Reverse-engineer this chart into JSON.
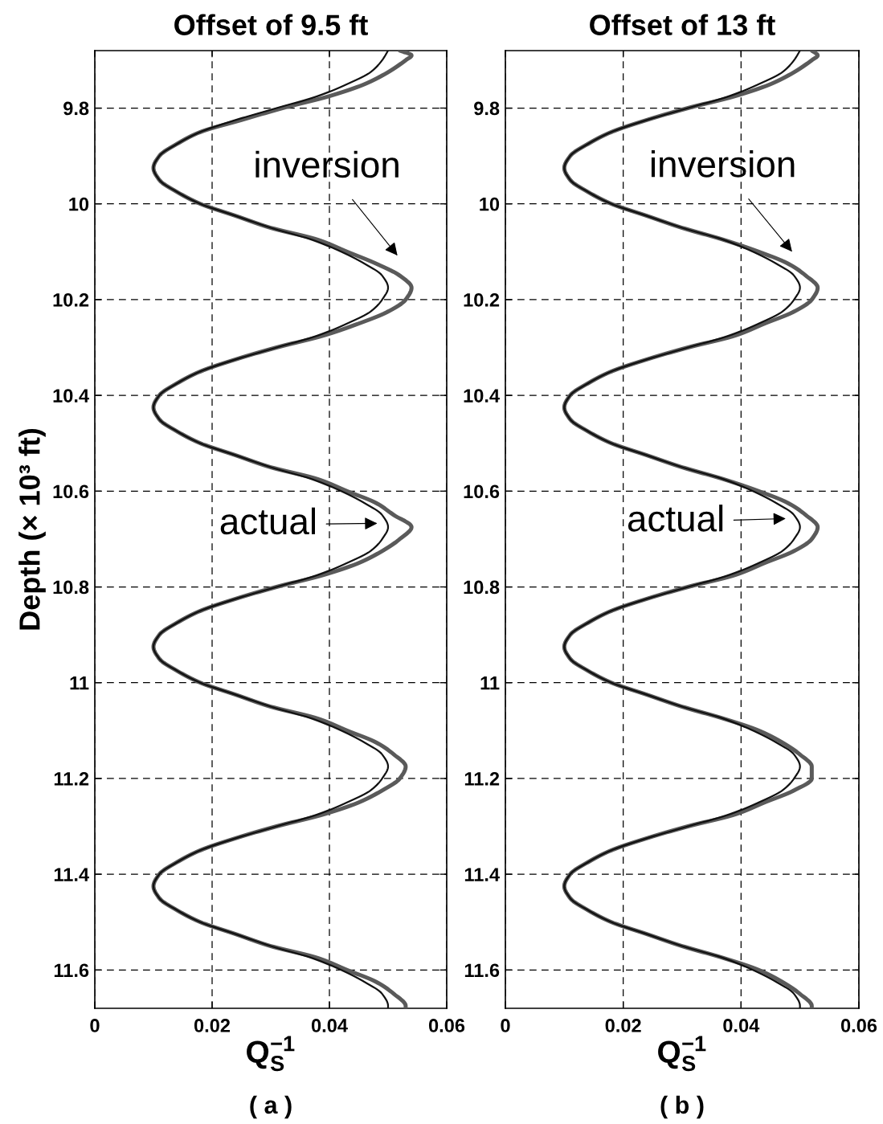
{
  "chart_data": [
    {
      "type": "line",
      "title": "Offset of 9.5 ft",
      "xlabel": "Q$^{−1}$$_{S}$",
      "ylabel": "Depth (× 10³ ft)",
      "xlim": [
        0,
        0.06
      ],
      "xticks": [
        0,
        0.02,
        0.04,
        0.06
      ],
      "ylim": [
        11.68,
        9.68
      ],
      "yticks": [
        9.8,
        10,
        10.2,
        10.4,
        10.6,
        10.8,
        11,
        11.2,
        11.4,
        11.6
      ],
      "grid": true,
      "series": [
        {
          "color": "#5a5a5a",
          "x": [
            0.052,
            0.054,
            0.053,
            0.05,
            0.046,
            0.04,
            0.032,
            0.025,
            0.018,
            0.014,
            0.011,
            0.01,
            0.011,
            0.014,
            0.018,
            0.024,
            0.03,
            0.038,
            0.043,
            0.048,
            0.052,
            0.054,
            0.053,
            0.05,
            0.045,
            0.039,
            0.031,
            0.024,
            0.018,
            0.014,
            0.011,
            0.01,
            0.011,
            0.014,
            0.018,
            0.024,
            0.03,
            0.038,
            0.043,
            0.048,
            0.051,
            0.054,
            0.052,
            0.049,
            0.045,
            0.039,
            0.031,
            0.024,
            0.018,
            0.014,
            0.011,
            0.01,
            0.011,
            0.014,
            0.018,
            0.024,
            0.03,
            0.038,
            0.043,
            0.048,
            0.051,
            0.053,
            0.052,
            0.049,
            0.045,
            0.039,
            0.031,
            0.024,
            0.018,
            0.014,
            0.011,
            0.01,
            0.011,
            0.014,
            0.018,
            0.024,
            0.03,
            0.038,
            0.043,
            0.048,
            0.051,
            0.053,
            0.053
          ],
          "values": [
            9.68,
            9.69,
            9.7,
            9.725,
            9.75,
            9.775,
            9.8,
            9.825,
            9.85,
            9.875,
            9.9,
            9.925,
            9.95,
            9.975,
            10,
            10.025,
            10.05,
            10.075,
            10.1,
            10.125,
            10.15,
            10.175,
            10.2,
            10.225,
            10.25,
            10.275,
            10.3,
            10.325,
            10.35,
            10.375,
            10.4,
            10.425,
            10.45,
            10.475,
            10.5,
            10.525,
            10.55,
            10.575,
            10.6,
            10.625,
            10.65,
            10.675,
            10.7,
            10.725,
            10.75,
            10.775,
            10.8,
            10.825,
            10.85,
            10.875,
            10.9,
            10.925,
            10.95,
            10.975,
            11,
            11.025,
            11.05,
            11.075,
            11.1,
            11.125,
            11.15,
            11.175,
            11.2,
            11.225,
            11.25,
            11.275,
            11.3,
            11.325,
            11.35,
            11.375,
            11.4,
            11.425,
            11.45,
            11.475,
            11.5,
            11.525,
            11.55,
            11.575,
            11.6,
            11.625,
            11.65,
            11.675,
            11.68
          ]
        },
        {
          "color": "#111111",
          "x": [
            0.05,
            0.049,
            0.047,
            0.043,
            0.038,
            0.031,
            0.024,
            0.018,
            0.014,
            0.011,
            0.01,
            0.011,
            0.014,
            0.018,
            0.024,
            0.03,
            0.037,
            0.042,
            0.046,
            0.049,
            0.05,
            0.049,
            0.047,
            0.043,
            0.038,
            0.031,
            0.024,
            0.018,
            0.014,
            0.011,
            0.01,
            0.011,
            0.014,
            0.018,
            0.024,
            0.03,
            0.037,
            0.042,
            0.046,
            0.049,
            0.05,
            0.049,
            0.047,
            0.043,
            0.038,
            0.031,
            0.024,
            0.018,
            0.014,
            0.011,
            0.01,
            0.011,
            0.014,
            0.018,
            0.024,
            0.03,
            0.037,
            0.042,
            0.046,
            0.049,
            0.05,
            0.049,
            0.047,
            0.043,
            0.038,
            0.031,
            0.024,
            0.018,
            0.014,
            0.011,
            0.01,
            0.011,
            0.014,
            0.018,
            0.024,
            0.03,
            0.037,
            0.042,
            0.046,
            0.049,
            0.05,
            0.05
          ],
          "values": [
            9.68,
            9.7,
            9.725,
            9.75,
            9.775,
            9.8,
            9.825,
            9.85,
            9.875,
            9.9,
            9.925,
            9.95,
            9.975,
            10,
            10.025,
            10.05,
            10.075,
            10.1,
            10.125,
            10.15,
            10.175,
            10.2,
            10.225,
            10.25,
            10.275,
            10.3,
            10.325,
            10.35,
            10.375,
            10.4,
            10.425,
            10.45,
            10.475,
            10.5,
            10.525,
            10.55,
            10.575,
            10.6,
            10.625,
            10.65,
            10.675,
            10.7,
            10.725,
            10.75,
            10.775,
            10.8,
            10.825,
            10.85,
            10.875,
            10.9,
            10.925,
            10.95,
            10.975,
            11,
            11.025,
            11.05,
            11.075,
            11.1,
            11.125,
            11.15,
            11.175,
            11.2,
            11.225,
            11.25,
            11.275,
            11.3,
            11.325,
            11.35,
            11.375,
            11.4,
            11.425,
            11.45,
            11.475,
            11.5,
            11.525,
            11.55,
            11.575,
            11.6,
            11.625,
            11.65,
            11.675,
            11.68
          ]
        }
      ],
      "annotations": [
        "inversion",
        "actual",
        "( a )"
      ]
    },
    {
      "type": "line",
      "title": "Offset of 13 ft",
      "xlabel": "Q$^{−1}$$_{S}$",
      "xlim": [
        0,
        0.06
      ],
      "xticks": [
        0,
        0.02,
        0.04,
        0.06
      ],
      "ylim": [
        11.68,
        9.68
      ],
      "yticks": [
        9.8,
        10,
        10.2,
        10.4,
        10.6,
        10.8,
        11,
        11.2,
        11.4,
        11.6
      ],
      "grid": true,
      "series": [
        {
          "color": "#5a5a5a",
          "x": [
            0.052,
            0.053,
            0.052,
            0.049,
            0.045,
            0.039,
            0.031,
            0.024,
            0.018,
            0.014,
            0.011,
            0.01,
            0.011,
            0.014,
            0.018,
            0.024,
            0.03,
            0.037,
            0.043,
            0.048,
            0.051,
            0.053,
            0.052,
            0.049,
            0.044,
            0.039,
            0.031,
            0.024,
            0.018,
            0.014,
            0.011,
            0.01,
            0.011,
            0.014,
            0.018,
            0.024,
            0.03,
            0.037,
            0.043,
            0.048,
            0.051,
            0.053,
            0.052,
            0.049,
            0.044,
            0.039,
            0.031,
            0.024,
            0.018,
            0.014,
            0.011,
            0.01,
            0.011,
            0.014,
            0.018,
            0.024,
            0.03,
            0.037,
            0.043,
            0.047,
            0.05,
            0.052,
            0.052,
            0.049,
            0.044,
            0.039,
            0.031,
            0.024,
            0.018,
            0.014,
            0.011,
            0.01,
            0.011,
            0.014,
            0.018,
            0.024,
            0.03,
            0.037,
            0.043,
            0.047,
            0.05,
            0.052,
            0.052
          ],
          "values": [
            9.68,
            9.69,
            9.7,
            9.725,
            9.75,
            9.775,
            9.8,
            9.825,
            9.85,
            9.875,
            9.9,
            9.925,
            9.95,
            9.975,
            10,
            10.025,
            10.05,
            10.075,
            10.1,
            10.125,
            10.15,
            10.175,
            10.2,
            10.225,
            10.25,
            10.275,
            10.3,
            10.325,
            10.35,
            10.375,
            10.4,
            10.425,
            10.45,
            10.475,
            10.5,
            10.525,
            10.55,
            10.575,
            10.6,
            10.625,
            10.65,
            10.675,
            10.7,
            10.725,
            10.75,
            10.775,
            10.8,
            10.825,
            10.85,
            10.875,
            10.9,
            10.925,
            10.95,
            10.975,
            11,
            11.025,
            11.05,
            11.075,
            11.1,
            11.125,
            11.15,
            11.175,
            11.2,
            11.225,
            11.25,
            11.275,
            11.3,
            11.325,
            11.35,
            11.375,
            11.4,
            11.425,
            11.45,
            11.475,
            11.5,
            11.525,
            11.55,
            11.575,
            11.6,
            11.625,
            11.65,
            11.675,
            11.68
          ]
        },
        {
          "color": "#111111",
          "x": [
            0.05,
            0.049,
            0.047,
            0.043,
            0.038,
            0.031,
            0.024,
            0.018,
            0.014,
            0.011,
            0.01,
            0.011,
            0.014,
            0.018,
            0.024,
            0.03,
            0.037,
            0.042,
            0.046,
            0.049,
            0.05,
            0.049,
            0.047,
            0.043,
            0.038,
            0.031,
            0.024,
            0.018,
            0.014,
            0.011,
            0.01,
            0.011,
            0.014,
            0.018,
            0.024,
            0.03,
            0.037,
            0.042,
            0.046,
            0.049,
            0.05,
            0.049,
            0.047,
            0.043,
            0.038,
            0.031,
            0.024,
            0.018,
            0.014,
            0.011,
            0.01,
            0.011,
            0.014,
            0.018,
            0.024,
            0.03,
            0.037,
            0.042,
            0.046,
            0.049,
            0.05,
            0.049,
            0.047,
            0.043,
            0.038,
            0.031,
            0.024,
            0.018,
            0.014,
            0.011,
            0.01,
            0.011,
            0.014,
            0.018,
            0.024,
            0.03,
            0.037,
            0.042,
            0.046,
            0.049,
            0.05,
            0.05
          ],
          "values": [
            9.68,
            9.7,
            9.725,
            9.75,
            9.775,
            9.8,
            9.825,
            9.85,
            9.875,
            9.9,
            9.925,
            9.95,
            9.975,
            10,
            10.025,
            10.05,
            10.075,
            10.1,
            10.125,
            10.15,
            10.175,
            10.2,
            10.225,
            10.25,
            10.275,
            10.3,
            10.325,
            10.35,
            10.375,
            10.4,
            10.425,
            10.45,
            10.475,
            10.5,
            10.525,
            10.55,
            10.575,
            10.6,
            10.625,
            10.65,
            10.675,
            10.7,
            10.725,
            10.75,
            10.775,
            10.8,
            10.825,
            10.85,
            10.875,
            10.9,
            10.925,
            10.95,
            10.975,
            11,
            11.025,
            11.05,
            11.075,
            11.1,
            11.125,
            11.15,
            11.175,
            11.2,
            11.225,
            11.25,
            11.275,
            11.3,
            11.325,
            11.35,
            11.375,
            11.4,
            11.425,
            11.45,
            11.475,
            11.5,
            11.525,
            11.55,
            11.575,
            11.6,
            11.625,
            11.65,
            11.675,
            11.68
          ]
        }
      ],
      "annotations": [
        "inversion",
        "actual",
        "( b )"
      ]
    }
  ]
}
